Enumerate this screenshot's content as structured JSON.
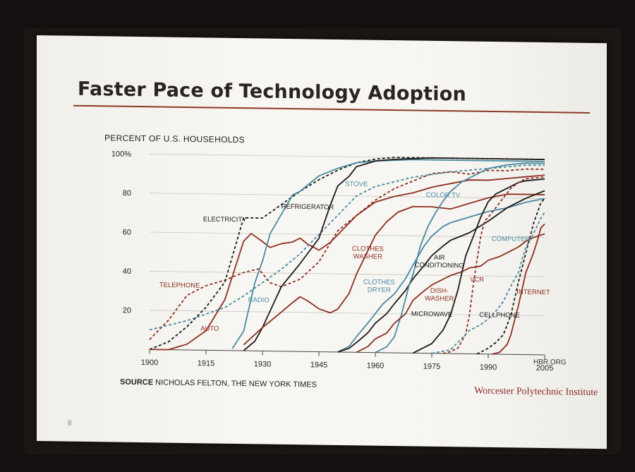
{
  "slide": {
    "title": "Faster Pace of Technology Adoption",
    "source_bold": "SOURCE",
    "source_text": " NICHOLAS FELTON, THE NEW YORK TIMES",
    "credit": "HBR.ORG",
    "institution": "Worcester Polytechnic Institute",
    "page_number": "8"
  },
  "chart_data": {
    "type": "line",
    "ylabel": "PERCENT OF U.S. HOUSEHOLDS",
    "xlim": [
      1900,
      2005
    ],
    "ylim": [
      0,
      100
    ],
    "x_ticks": [
      1900,
      1915,
      1930,
      1945,
      1960,
      1975,
      1990,
      2005
    ],
    "y_ticks": [
      20,
      40,
      60,
      80,
      100
    ],
    "y_tick_labels": [
      "20",
      "40",
      "60",
      "80",
      "100%"
    ],
    "grid": true,
    "colors": {
      "red": "#8e2f22",
      "blue": "#4a8aa0",
      "black": "#1e1a18"
    },
    "series": [
      {
        "name": "TELEPHONE",
        "color": "red",
        "dash": true,
        "label_at": [
          1908,
          32
        ],
        "points": [
          [
            1900,
            5
          ],
          [
            1905,
            15
          ],
          [
            1910,
            28
          ],
          [
            1915,
            33
          ],
          [
            1920,
            36
          ],
          [
            1925,
            40
          ],
          [
            1929,
            42
          ],
          [
            1932,
            35
          ],
          [
            1935,
            33
          ],
          [
            1940,
            37
          ],
          [
            1945,
            46
          ],
          [
            1950,
            62
          ],
          [
            1955,
            70
          ],
          [
            1960,
            78
          ],
          [
            1965,
            84
          ],
          [
            1970,
            88
          ],
          [
            1975,
            92
          ],
          [
            1980,
            93
          ],
          [
            1985,
            92
          ],
          [
            1990,
            94
          ],
          [
            1995,
            94
          ],
          [
            2000,
            95
          ],
          [
            2005,
            95
          ]
        ]
      },
      {
        "name": "ELECTRICITY",
        "color": "black",
        "dash": true,
        "label_at": [
          1920,
          66
        ],
        "points": [
          [
            1900,
            0
          ],
          [
            1905,
            4
          ],
          [
            1910,
            12
          ],
          [
            1915,
            22
          ],
          [
            1920,
            35
          ],
          [
            1925,
            68
          ],
          [
            1930,
            68
          ],
          [
            1935,
            75
          ],
          [
            1940,
            82
          ],
          [
            1945,
            88
          ],
          [
            1950,
            93
          ],
          [
            1955,
            97
          ],
          [
            1960,
            99
          ],
          [
            1965,
            100
          ],
          [
            1975,
            100
          ],
          [
            2005,
            100
          ]
        ]
      },
      {
        "name": "AUTO",
        "color": "red",
        "dash": false,
        "label_at": [
          1916,
          10
        ],
        "points": [
          [
            1900,
            0
          ],
          [
            1905,
            0
          ],
          [
            1910,
            3
          ],
          [
            1915,
            10
          ],
          [
            1920,
            26
          ],
          [
            1925,
            56
          ],
          [
            1927,
            60
          ],
          [
            1930,
            56
          ],
          [
            1932,
            53
          ],
          [
            1935,
            55
          ],
          [
            1938,
            56
          ],
          [
            1940,
            58
          ],
          [
            1942,
            55
          ],
          [
            1945,
            52
          ],
          [
            1948,
            56
          ],
          [
            1950,
            60
          ],
          [
            1955,
            70
          ],
          [
            1960,
            77
          ],
          [
            1965,
            80
          ],
          [
            1970,
            82
          ],
          [
            1975,
            85
          ],
          [
            1980,
            87
          ],
          [
            1985,
            89
          ],
          [
            1990,
            89
          ],
          [
            1995,
            90
          ],
          [
            2000,
            91
          ],
          [
            2005,
            92
          ]
        ]
      },
      {
        "name": "RADIO",
        "color": "blue",
        "dash": false,
        "label_at": [
          1929,
          25
        ],
        "points": [
          [
            1922,
            1
          ],
          [
            1925,
            10
          ],
          [
            1928,
            35
          ],
          [
            1930,
            46
          ],
          [
            1932,
            60
          ],
          [
            1935,
            70
          ],
          [
            1938,
            80
          ],
          [
            1940,
            82
          ],
          [
            1945,
            90
          ],
          [
            1950,
            94
          ],
          [
            1955,
            97
          ],
          [
            1960,
            98
          ],
          [
            1970,
            99
          ],
          [
            1980,
            99
          ],
          [
            2005,
            99
          ]
        ]
      },
      {
        "name": "STOVE",
        "color": "blue",
        "dash": true,
        "label_at": [
          1955,
          85
        ],
        "points": [
          [
            1900,
            10
          ],
          [
            1910,
            15
          ],
          [
            1920,
            22
          ],
          [
            1925,
            28
          ],
          [
            1930,
            35
          ],
          [
            1935,
            42
          ],
          [
            1940,
            50
          ],
          [
            1945,
            60
          ],
          [
            1950,
            70
          ],
          [
            1955,
            80
          ],
          [
            1960,
            85
          ],
          [
            1970,
            90
          ],
          [
            1980,
            93
          ],
          [
            1990,
            95
          ],
          [
            2000,
            97
          ],
          [
            2005,
            97
          ]
        ]
      },
      {
        "name": "REFRIGERATOR",
        "color": "black",
        "dash": false,
        "label_at": [
          1942,
          73
        ],
        "points": [
          [
            1925,
            0
          ],
          [
            1928,
            5
          ],
          [
            1930,
            12
          ],
          [
            1935,
            33
          ],
          [
            1940,
            45
          ],
          [
            1945,
            58
          ],
          [
            1948,
            75
          ],
          [
            1950,
            85
          ],
          [
            1953,
            90
          ],
          [
            1955,
            95
          ],
          [
            1960,
            98
          ],
          [
            1965,
            99
          ],
          [
            1975,
            100
          ],
          [
            2005,
            100
          ]
        ]
      },
      {
        "name": "CLOTHES WASHER",
        "color": "red",
        "dash": false,
        "label_at": [
          1958,
          52
        ],
        "points": [
          [
            1925,
            3
          ],
          [
            1930,
            12
          ],
          [
            1935,
            20
          ],
          [
            1938,
            25
          ],
          [
            1940,
            28
          ],
          [
            1942,
            26
          ],
          [
            1945,
            22
          ],
          [
            1948,
            20
          ],
          [
            1950,
            22
          ],
          [
            1953,
            30
          ],
          [
            1955,
            40
          ],
          [
            1958,
            52
          ],
          [
            1960,
            60
          ],
          [
            1963,
            67
          ],
          [
            1966,
            72
          ],
          [
            1970,
            75
          ],
          [
            1975,
            75
          ],
          [
            1980,
            74
          ],
          [
            1985,
            77
          ],
          [
            1990,
            80
          ],
          [
            1995,
            82
          ],
          [
            2000,
            82
          ],
          [
            2005,
            82
          ]
        ]
      },
      {
        "name": "CLOTHES DRYER",
        "color": "blue",
        "dash": false,
        "label_at": [
          1961,
          35
        ],
        "points": [
          [
            1950,
            0
          ],
          [
            1953,
            3
          ],
          [
            1955,
            8
          ],
          [
            1958,
            15
          ],
          [
            1960,
            20
          ],
          [
            1962,
            25
          ],
          [
            1965,
            30
          ],
          [
            1968,
            38
          ],
          [
            1970,
            45
          ],
          [
            1973,
            55
          ],
          [
            1975,
            60
          ],
          [
            1978,
            65
          ],
          [
            1980,
            67
          ],
          [
            1985,
            70
          ],
          [
            1990,
            73
          ],
          [
            1995,
            75
          ],
          [
            2000,
            78
          ],
          [
            2005,
            80
          ]
        ]
      },
      {
        "name": "AIR CONDITIONING",
        "color": "black",
        "dash": false,
        "label_at": [
          1977,
          48
        ],
        "points": [
          [
            1950,
            0
          ],
          [
            1953,
            2
          ],
          [
            1955,
            5
          ],
          [
            1958,
            10
          ],
          [
            1960,
            15
          ],
          [
            1963,
            20
          ],
          [
            1965,
            25
          ],
          [
            1968,
            32
          ],
          [
            1970,
            38
          ],
          [
            1973,
            45
          ],
          [
            1975,
            50
          ],
          [
            1978,
            55
          ],
          [
            1980,
            58
          ],
          [
            1985,
            62
          ],
          [
            1990,
            68
          ],
          [
            1995,
            75
          ],
          [
            2000,
            80
          ],
          [
            2005,
            84
          ]
        ]
      },
      {
        "name": "COLOR TV",
        "color": "blue",
        "dash": false,
        "label_at": [
          1978,
          80
        ],
        "points": [
          [
            1960,
            0
          ],
          [
            1963,
            3
          ],
          [
            1965,
            8
          ],
          [
            1967,
            20
          ],
          [
            1969,
            35
          ],
          [
            1970,
            40
          ],
          [
            1972,
            55
          ],
          [
            1974,
            65
          ],
          [
            1976,
            72
          ],
          [
            1978,
            78
          ],
          [
            1980,
            83
          ],
          [
            1983,
            88
          ],
          [
            1986,
            91
          ],
          [
            1990,
            95
          ],
          [
            1995,
            97
          ],
          [
            2000,
            98
          ],
          [
            2005,
            98
          ]
        ]
      },
      {
        "name": "DISH- WASHER",
        "color": "red",
        "dash": false,
        "label_at": [
          1977,
          31
        ],
        "points": [
          [
            1955,
            0
          ],
          [
            1958,
            3
          ],
          [
            1960,
            7
          ],
          [
            1963,
            10
          ],
          [
            1965,
            15
          ],
          [
            1968,
            20
          ],
          [
            1970,
            27
          ],
          [
            1973,
            32
          ],
          [
            1975,
            35
          ],
          [
            1978,
            38
          ],
          [
            1980,
            40
          ],
          [
            1983,
            42
          ],
          [
            1985,
            44
          ],
          [
            1988,
            45
          ],
          [
            1990,
            48
          ],
          [
            1993,
            50
          ],
          [
            1995,
            52
          ],
          [
            1998,
            55
          ],
          [
            2000,
            58
          ],
          [
            2002,
            60
          ],
          [
            2005,
            62
          ]
        ]
      },
      {
        "name": "MICROWAVE",
        "color": "black",
        "dash": false,
        "label_at": [
          1975,
          19
        ],
        "points": [
          [
            1970,
            0
          ],
          [
            1972,
            2
          ],
          [
            1975,
            5
          ],
          [
            1978,
            12
          ],
          [
            1980,
            20
          ],
          [
            1982,
            33
          ],
          [
            1984,
            50
          ],
          [
            1986,
            60
          ],
          [
            1988,
            70
          ],
          [
            1990,
            78
          ],
          [
            1992,
            82
          ],
          [
            1995,
            85
          ],
          [
            1998,
            88
          ],
          [
            2000,
            89
          ],
          [
            2005,
            90
          ]
        ]
      },
      {
        "name": "VCR",
        "color": "red",
        "dash": true,
        "label_at": [
          1987,
          37
        ],
        "points": [
          [
            1978,
            0
          ],
          [
            1980,
            1
          ],
          [
            1982,
            3
          ],
          [
            1984,
            10
          ],
          [
            1985,
            20
          ],
          [
            1986,
            35
          ],
          [
            1987,
            48
          ],
          [
            1988,
            60
          ],
          [
            1989,
            68
          ],
          [
            1990,
            70
          ],
          [
            1992,
            75
          ],
          [
            1994,
            80
          ],
          [
            1996,
            85
          ],
          [
            1998,
            88
          ],
          [
            2000,
            90
          ],
          [
            2005,
            91
          ]
        ]
      },
      {
        "name": "COMPUTER",
        "color": "blue",
        "dash": true,
        "label_at": [
          1996,
          58
        ],
        "points": [
          [
            1975,
            0
          ],
          [
            1980,
            2
          ],
          [
            1983,
            8
          ],
          [
            1985,
            12
          ],
          [
            1988,
            15
          ],
          [
            1990,
            18
          ],
          [
            1992,
            22
          ],
          [
            1994,
            27
          ],
          [
            1996,
            35
          ],
          [
            1998,
            42
          ],
          [
            2000,
            55
          ],
          [
            2002,
            62
          ],
          [
            2004,
            70
          ],
          [
            2005,
            73
          ]
        ]
      },
      {
        "name": "CELLPHONE",
        "color": "black",
        "dash": true,
        "label_at": [
          1993,
          19
        ],
        "points": [
          [
            1987,
            0
          ],
          [
            1990,
            3
          ],
          [
            1992,
            6
          ],
          [
            1994,
            10
          ],
          [
            1996,
            20
          ],
          [
            1998,
            37
          ],
          [
            2000,
            52
          ],
          [
            2002,
            67
          ],
          [
            2004,
            78
          ],
          [
            2005,
            80
          ]
        ]
      },
      {
        "name": "INTERNET",
        "color": "red",
        "dash": false,
        "label_at": [
          2002,
          31
        ],
        "points": [
          [
            1991,
            0
          ],
          [
            1993,
            1
          ],
          [
            1995,
            5
          ],
          [
            1996,
            10
          ],
          [
            1998,
            25
          ],
          [
            2000,
            42
          ],
          [
            2002,
            52
          ],
          [
            2003,
            58
          ],
          [
            2004,
            65
          ],
          [
            2005,
            67
          ]
        ]
      }
    ]
  }
}
